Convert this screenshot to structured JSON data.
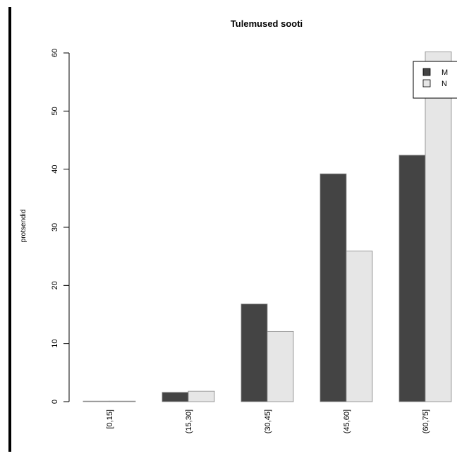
{
  "chart_data": {
    "type": "bar",
    "title": "Tulemused sooti",
    "xlabel": "",
    "ylabel": "protsendid",
    "categories": [
      "[0,15]",
      "(15,30]",
      "(30,45]",
      "(45,60]",
      "(60,75]"
    ],
    "series": [
      {
        "name": "M",
        "values": [
          0,
          1.6,
          16.8,
          39.2,
          42.4
        ],
        "color": "#444444"
      },
      {
        "name": "N",
        "values": [
          0,
          1.8,
          12.1,
          25.9,
          60.2
        ],
        "color": "#e6e6e6"
      }
    ],
    "ylim": [
      0,
      60
    ],
    "yticks": [
      0,
      10,
      20,
      30,
      40,
      50,
      60
    ],
    "grid": false,
    "legend_position": "top-right"
  }
}
